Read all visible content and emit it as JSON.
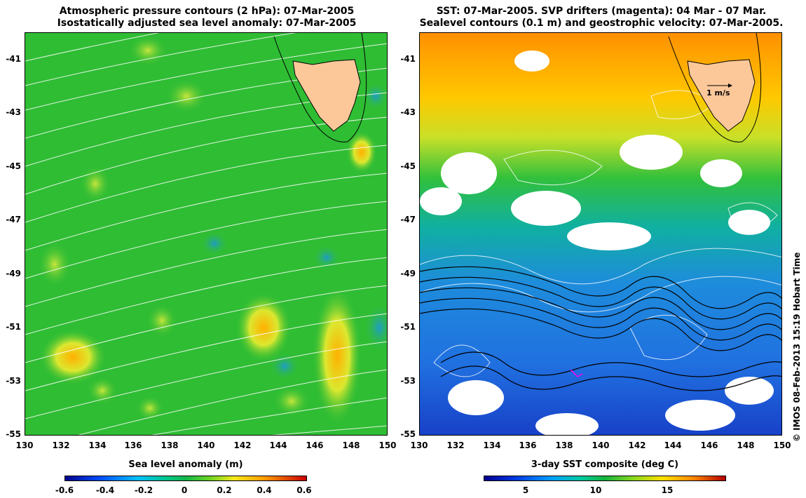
{
  "left_panel": {
    "title_line1": "Atmospheric pressure contours (2 hPa): 07-Mar-2005",
    "title_line2": "Isostatically adjusted sea level anomaly: 07-Mar-2005",
    "colorbar_label": "Sea level anomaly (m)",
    "colorbar_ticks": [
      "-0.6",
      "-0.4",
      "-0.2",
      "0",
      "0.2",
      "0.4",
      "0.6"
    ]
  },
  "right_panel": {
    "title_line1": "SST: 07-Mar-2005. SVP drifters (magenta): 04 Mar - 07 Mar.",
    "title_line2": "Sealevel contours (0.1 m) and geostrophic velocity: 07-Mar-2005.",
    "colorbar_label": "3-day SST composite (deg C)",
    "colorbar_ticks": [
      "5",
      "10",
      "15"
    ],
    "scale_arrow_label": "1 m/s"
  },
  "axes": {
    "latitude_ticks": [
      "-41",
      "-43",
      "-45",
      "-47",
      "-49",
      "-51",
      "-53",
      "-55"
    ],
    "longitude_ticks": [
      "130",
      "132",
      "134",
      "136",
      "138",
      "140",
      "142",
      "144",
      "146",
      "148",
      "150"
    ]
  },
  "credit": "© IMOS 08-Feb-2013 15:19 Hobart Time",
  "colors": {
    "land": "#fcc89a",
    "sla_background": "#34c032",
    "contour": "#ffffff",
    "drifter": "#ff00ff"
  }
}
